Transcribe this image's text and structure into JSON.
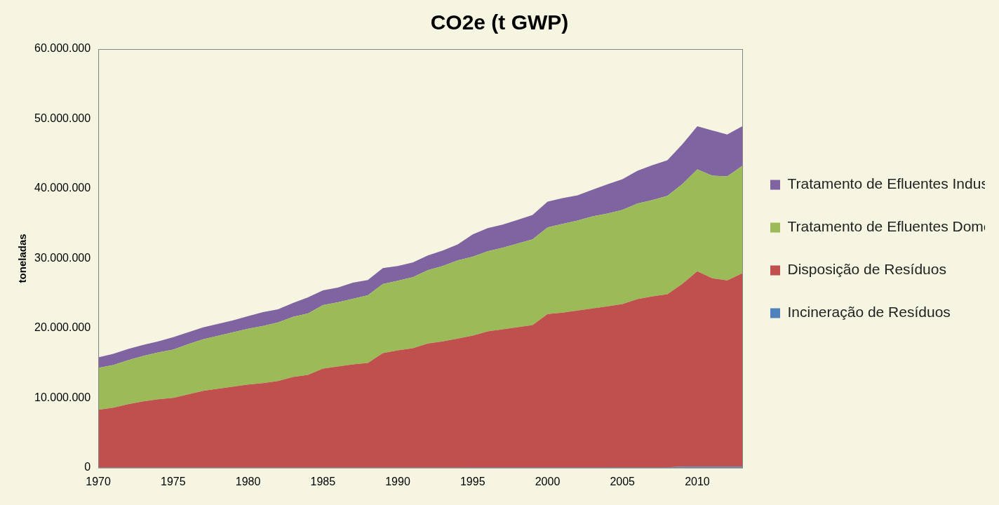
{
  "chart_data": {
    "type": "area",
    "title": "CO2e (t GWP)",
    "y_label": "toneladas",
    "stacked": true,
    "grid": false,
    "legend": "right",
    "x": [
      1970,
      1971,
      1972,
      1973,
      1974,
      1975,
      1976,
      1977,
      1978,
      1979,
      1980,
      1981,
      1982,
      1983,
      1984,
      1985,
      1986,
      1987,
      1988,
      1989,
      1990,
      1991,
      1992,
      1993,
      1994,
      1995,
      1996,
      1997,
      1998,
      1999,
      2000,
      2001,
      2002,
      2003,
      2004,
      2005,
      2006,
      2007,
      2008,
      2009,
      2010,
      2011,
      2012,
      2013
    ],
    "xlim": [
      1970,
      2013
    ],
    "xticks": [
      1970,
      1975,
      1980,
      1985,
      1990,
      1995,
      2000,
      2005,
      2010
    ],
    "ylim": [
      0,
      60000000
    ],
    "yticks": [
      0,
      {
        "value": 10000000,
        "label": "10.000.000"
      },
      {
        "value": 20000000,
        "label": "20.000.000"
      },
      {
        "value": 30000000,
        "label": "30.000.000"
      },
      {
        "value": 40000000,
        "label": "40.000.000"
      },
      {
        "value": 50000000,
        "label": "50.000.000"
      },
      {
        "value": 60000000,
        "label": "60.000.000"
      }
    ],
    "series": [
      {
        "name": "Incineração de Resíduos",
        "color": "#4F81BD",
        "values": [
          10000,
          10000,
          10000,
          10000,
          10000,
          10000,
          10000,
          10000,
          10000,
          10000,
          10000,
          10000,
          10000,
          10000,
          10000,
          10000,
          10000,
          10000,
          10000,
          10000,
          10000,
          10000,
          10000,
          10000,
          10000,
          30000,
          30000,
          30000,
          30000,
          30000,
          30000,
          30000,
          30000,
          30000,
          30000,
          60000,
          60000,
          60000,
          60000,
          150000,
          150000,
          150000,
          150000,
          150000
        ]
      },
      {
        "name": "Disposição de Resíduos",
        "color": "#C0504D",
        "values": [
          8300000,
          8600000,
          9100000,
          9500000,
          9800000,
          10000000,
          10500000,
          11000000,
          11300000,
          11600000,
          11900000,
          12100000,
          12400000,
          13000000,
          13300000,
          14200000,
          14500000,
          14800000,
          15000000,
          16400000,
          16800000,
          17100000,
          17800000,
          18100000,
          18500000,
          18900000,
          19500000,
          19800000,
          20100000,
          20400000,
          22000000,
          22200000,
          22500000,
          22800000,
          23100000,
          23400000,
          24100000,
          24500000,
          24800000,
          26200000,
          28000000,
          27000000,
          26700000,
          27700000
        ]
      },
      {
        "name": "Tratamento de Efluentes Domésticos",
        "color": "#9BBB59",
        "values": [
          6000000,
          6100000,
          6300000,
          6500000,
          6700000,
          6900000,
          7200000,
          7400000,
          7600000,
          7800000,
          8000000,
          8200000,
          8400000,
          8600000,
          8800000,
          9100000,
          9200000,
          9400000,
          9700000,
          9900000,
          10000000,
          10200000,
          10500000,
          10800000,
          11200000,
          11300000,
          11500000,
          11700000,
          12000000,
          12300000,
          12400000,
          12700000,
          12900000,
          13200000,
          13300000,
          13500000,
          13700000,
          13800000,
          14100000,
          14300000,
          14600000,
          14700000,
          14900000,
          15400000
        ]
      },
      {
        "name": "Tratamento de Efluentes Industriais",
        "color": "#8064A2",
        "values": [
          1500000,
          1600000,
          1600000,
          1600000,
          1600000,
          1800000,
          1700000,
          1700000,
          1700000,
          1700000,
          1800000,
          2000000,
          1900000,
          2000000,
          2300000,
          2100000,
          2100000,
          2300000,
          2200000,
          2300000,
          2100000,
          2100000,
          2100000,
          2200000,
          2300000,
          3200000,
          3300000,
          3300000,
          3400000,
          3500000,
          3700000,
          3700000,
          3600000,
          3800000,
          4200000,
          4400000,
          4700000,
          5000000,
          5100000,
          5700000,
          6200000,
          6500000,
          6000000,
          5700000
        ]
      }
    ]
  }
}
